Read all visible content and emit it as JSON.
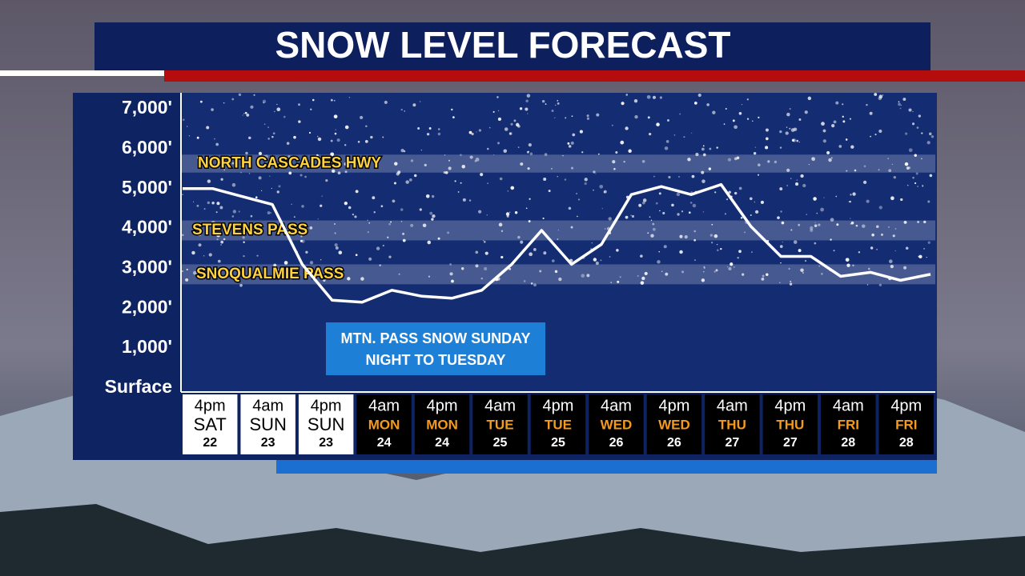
{
  "chart_data": {
    "type": "line",
    "title": "SNOW LEVEL FORECAST",
    "ylim": [
      -100,
      7400
    ],
    "yticks": [
      {
        "value": 0,
        "label": "Surface"
      },
      {
        "value": 1000,
        "label": "1,000'"
      },
      {
        "value": 2000,
        "label": "2,000'"
      },
      {
        "value": 3000,
        "label": "3,000'"
      },
      {
        "value": 4000,
        "label": "4,000'"
      },
      {
        "value": 5000,
        "label": "5,000'"
      },
      {
        "value": 6000,
        "label": "6,000'"
      },
      {
        "value": 7000,
        "label": "7,000'"
      }
    ],
    "series": [
      {
        "color": "#ffffff",
        "values": [
          5000,
          5000,
          4800,
          4600,
          3100,
          2200,
          2150,
          2450,
          2300,
          2250,
          2450,
          3100,
          3950,
          3100,
          3600,
          4850,
          5050,
          4850,
          5100,
          4050,
          3300,
          3300,
          2800,
          2900,
          2700,
          2850
        ]
      }
    ],
    "bands": [
      {
        "label": "NORTH CASCADES HWY",
        "range": [
          5400,
          5850
        ]
      },
      {
        "label": "STEVENS PASS",
        "range": [
          3700,
          4200
        ]
      },
      {
        "label": "SNOQUALMIE PASS",
        "range": [
          2600,
          3100
        ]
      }
    ],
    "annotation": [
      "MTN. PASS SNOW SUNDAY",
      "NIGHT TO TUESDAY"
    ],
    "columns": [
      {
        "time": "4pm",
        "day": "SAT",
        "date": "22",
        "fill": "#ffffff"
      },
      {
        "time": "4am",
        "day": "SUN",
        "date": "23",
        "fill": "#ffffff"
      },
      {
        "time": "4pm",
        "day": "SUN",
        "date": "23",
        "fill": "#ffffff"
      },
      {
        "time": "4am",
        "day": "MON",
        "date": "24",
        "fill": "#000000"
      },
      {
        "time": "4pm",
        "day": "MON",
        "date": "24",
        "fill": "#000000"
      },
      {
        "time": "4am",
        "day": "TUE",
        "date": "25",
        "fill": "#000000"
      },
      {
        "time": "4pm",
        "day": "TUE",
        "date": "25",
        "fill": "#000000"
      },
      {
        "time": "4am",
        "day": "WED",
        "date": "26",
        "fill": "#000000"
      },
      {
        "time": "4pm",
        "day": "WED",
        "date": "26",
        "fill": "#000000"
      },
      {
        "time": "4am",
        "day": "THU",
        "date": "27",
        "fill": "#000000"
      },
      {
        "time": "4pm",
        "day": "THU",
        "date": "27",
        "fill": "#000000"
      },
      {
        "time": "4am",
        "day": "FRI",
        "date": "28",
        "fill": "#000000"
      },
      {
        "time": "4pm",
        "day": "FRI",
        "date": "28",
        "fill": "#000000"
      }
    ]
  }
}
